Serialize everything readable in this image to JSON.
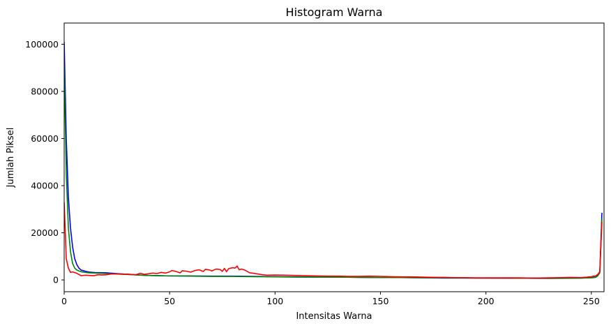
{
  "chart_data": {
    "type": "line",
    "title": "Histogram Warna",
    "xlabel": "Intensitas Warna",
    "ylabel": "Jumlah Piksel",
    "xlim": [
      0,
      256
    ],
    "ylim": [
      -5000,
      109000
    ],
    "xticks": [
      0,
      50,
      100,
      150,
      200,
      250
    ],
    "yticks": [
      0,
      20000,
      40000,
      60000,
      80000,
      100000
    ],
    "grid": false,
    "legend": "none",
    "series": [
      {
        "color": "#0000ff",
        "points": [
          [
            0,
            101000
          ],
          [
            1,
            60000
          ],
          [
            2,
            35000
          ],
          [
            3,
            22000
          ],
          [
            4,
            14000
          ],
          [
            5,
            9000
          ],
          [
            6,
            6500
          ],
          [
            7,
            5000
          ],
          [
            8,
            4200
          ],
          [
            10,
            3700
          ],
          [
            12,
            3300
          ],
          [
            15,
            3100
          ],
          [
            18,
            3100
          ],
          [
            20,
            3000
          ],
          [
            25,
            2700
          ],
          [
            30,
            2400
          ],
          [
            35,
            2100
          ],
          [
            40,
            1900
          ],
          [
            45,
            1800
          ],
          [
            50,
            1700
          ],
          [
            60,
            1700
          ],
          [
            70,
            1600
          ],
          [
            80,
            1600
          ],
          [
            90,
            1500
          ],
          [
            100,
            1400
          ],
          [
            110,
            1300
          ],
          [
            120,
            1200
          ],
          [
            130,
            1200
          ],
          [
            140,
            1100
          ],
          [
            150,
            1000
          ],
          [
            160,
            1000
          ],
          [
            170,
            900
          ],
          [
            180,
            800
          ],
          [
            190,
            800
          ],
          [
            200,
            750
          ],
          [
            210,
            700
          ],
          [
            220,
            700
          ],
          [
            230,
            650
          ],
          [
            240,
            700
          ],
          [
            245,
            800
          ],
          [
            248,
            900
          ],
          [
            250,
            1000
          ],
          [
            252,
            1200
          ],
          [
            253,
            1800
          ],
          [
            254,
            3500
          ],
          [
            255,
            28500
          ]
        ]
      },
      {
        "color": "#008000",
        "points": [
          [
            0,
            91000
          ],
          [
            1,
            45000
          ],
          [
            2,
            22000
          ],
          [
            3,
            12000
          ],
          [
            4,
            7000
          ],
          [
            5,
            5000
          ],
          [
            6,
            4200
          ],
          [
            7,
            3800
          ],
          [
            8,
            3500
          ],
          [
            10,
            3200
          ],
          [
            12,
            3000
          ],
          [
            15,
            2900
          ],
          [
            18,
            2800
          ],
          [
            20,
            2700
          ],
          [
            25,
            2500
          ],
          [
            30,
            2300
          ],
          [
            35,
            2100
          ],
          [
            40,
            1900
          ],
          [
            45,
            1800
          ],
          [
            50,
            1700
          ],
          [
            60,
            1600
          ],
          [
            70,
            1500
          ],
          [
            80,
            1500
          ],
          [
            90,
            1400
          ],
          [
            100,
            1300
          ],
          [
            110,
            1200
          ],
          [
            120,
            1200
          ],
          [
            130,
            1200
          ],
          [
            140,
            1100
          ],
          [
            150,
            1000
          ],
          [
            160,
            1000
          ],
          [
            170,
            950
          ],
          [
            180,
            900
          ],
          [
            190,
            850
          ],
          [
            200,
            800
          ],
          [
            210,
            800
          ],
          [
            220,
            750
          ],
          [
            230,
            700
          ],
          [
            240,
            750
          ],
          [
            245,
            800
          ],
          [
            250,
            900
          ],
          [
            252,
            1100
          ],
          [
            253,
            1700
          ],
          [
            254,
            3000
          ],
          [
            255,
            26000
          ]
        ]
      },
      {
        "color": "#ff0000",
        "points": [
          [
            0,
            33000
          ],
          [
            1,
            9000
          ],
          [
            2,
            5000
          ],
          [
            3,
            3200
          ],
          [
            4,
            3400
          ],
          [
            5,
            3100
          ],
          [
            6,
            2800
          ],
          [
            7,
            2300
          ],
          [
            8,
            1800
          ],
          [
            10,
            2000
          ],
          [
            12,
            1900
          ],
          [
            14,
            1800
          ],
          [
            16,
            2200
          ],
          [
            18,
            2100
          ],
          [
            20,
            2200
          ],
          [
            22,
            2500
          ],
          [
            25,
            2600
          ],
          [
            28,
            2400
          ],
          [
            30,
            2500
          ],
          [
            32,
            2300
          ],
          [
            34,
            2200
          ],
          [
            36,
            2800
          ],
          [
            38,
            2400
          ],
          [
            40,
            2600
          ],
          [
            42,
            2900
          ],
          [
            44,
            2700
          ],
          [
            46,
            3200
          ],
          [
            48,
            2900
          ],
          [
            50,
            3400
          ],
          [
            51,
            4000
          ],
          [
            53,
            3600
          ],
          [
            55,
            3000
          ],
          [
            56,
            3900
          ],
          [
            58,
            3700
          ],
          [
            60,
            3300
          ],
          [
            62,
            4000
          ],
          [
            64,
            4300
          ],
          [
            66,
            3600
          ],
          [
            67,
            4500
          ],
          [
            69,
            4200
          ],
          [
            70,
            3800
          ],
          [
            72,
            4600
          ],
          [
            74,
            4400
          ],
          [
            75,
            3600
          ],
          [
            76,
            4900
          ],
          [
            77,
            3500
          ],
          [
            78,
            4800
          ],
          [
            80,
            5200
          ],
          [
            81,
            5000
          ],
          [
            82,
            5900
          ],
          [
            83,
            4300
          ],
          [
            84,
            4600
          ],
          [
            85,
            4400
          ],
          [
            86,
            4000
          ],
          [
            88,
            3000
          ],
          [
            90,
            2800
          ],
          [
            92,
            2500
          ],
          [
            94,
            2200
          ],
          [
            96,
            2000
          ],
          [
            100,
            2100
          ],
          [
            105,
            2000
          ],
          [
            110,
            1900
          ],
          [
            115,
            1800
          ],
          [
            120,
            1700
          ],
          [
            125,
            1600
          ],
          [
            130,
            1600
          ],
          [
            135,
            1500
          ],
          [
            140,
            1500
          ],
          [
            145,
            1600
          ],
          [
            150,
            1500
          ],
          [
            155,
            1400
          ],
          [
            160,
            1300
          ],
          [
            165,
            1300
          ],
          [
            170,
            1200
          ],
          [
            175,
            1100
          ],
          [
            180,
            1100
          ],
          [
            185,
            1000
          ],
          [
            190,
            1000
          ],
          [
            195,
            900
          ],
          [
            200,
            900
          ],
          [
            205,
            900
          ],
          [
            210,
            900
          ],
          [
            215,
            900
          ],
          [
            220,
            850
          ],
          [
            225,
            850
          ],
          [
            230,
            900
          ],
          [
            235,
            1000
          ],
          [
            240,
            1100
          ],
          [
            245,
            1000
          ],
          [
            248,
            1200
          ],
          [
            250,
            1400
          ],
          [
            251,
            1600
          ],
          [
            252,
            1700
          ],
          [
            253,
            2300
          ],
          [
            254,
            3500
          ],
          [
            255,
            24500
          ]
        ]
      }
    ]
  }
}
